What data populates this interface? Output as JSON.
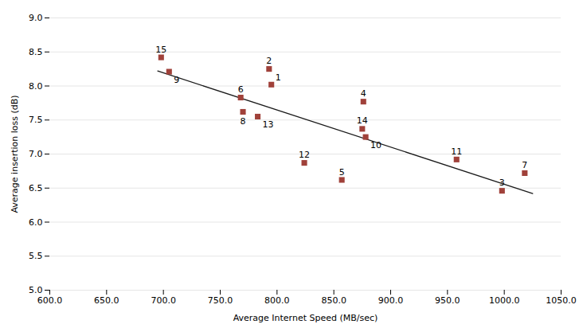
{
  "chart_data": {
    "type": "scatter",
    "xlabel": "Average Internet Speed (MB/sec)",
    "ylabel": "Average insertion loss (dB)",
    "point_labels": [
      "1",
      "2",
      "3",
      "4",
      "5",
      "6",
      "7",
      "8",
      "9",
      "10",
      "11",
      "12",
      "13",
      "14",
      "15"
    ],
    "x": [
      795,
      793,
      998,
      876,
      857,
      768,
      1018,
      770,
      705,
      878,
      958,
      824,
      783,
      875,
      698
    ],
    "values": [
      8.02,
      8.25,
      6.46,
      7.77,
      6.62,
      7.83,
      6.72,
      7.62,
      8.21,
      7.25,
      6.92,
      6.87,
      7.55,
      7.37,
      8.42
    ],
    "color": "#A0413A",
    "marker": "square",
    "trendline": {
      "x": [
        695,
        1025
      ],
      "values": [
        8.22,
        6.42
      ],
      "color": "#1a1a1a"
    },
    "xlim": [
      600.0,
      1050.0
    ],
    "ylim": [
      5.0,
      9.0
    ],
    "xticks": [
      {
        "value": 600,
        "label": "600.0"
      },
      {
        "value": 650,
        "label": "650.0"
      },
      {
        "value": 700,
        "label": "700.0"
      },
      {
        "value": 750,
        "label": "750.0"
      },
      {
        "value": 800,
        "label": "800.0"
      },
      {
        "value": 850,
        "label": "850.0"
      },
      {
        "value": 900,
        "label": "900.0"
      },
      {
        "value": 950,
        "label": "950.0"
      },
      {
        "value": 1000,
        "label": "1000.0"
      },
      {
        "value": 1050,
        "label": "1050.0"
      }
    ],
    "yticks": [
      {
        "value": 5,
        "label": "5.0"
      },
      {
        "value": 5.5,
        "label": "5.5"
      },
      {
        "value": 6,
        "label": "6.0"
      },
      {
        "value": 6.5,
        "label": "6.5"
      },
      {
        "value": 7,
        "label": "7.0"
      },
      {
        "value": 7.5,
        "label": "7.5"
      },
      {
        "value": 8,
        "label": "8.0"
      },
      {
        "value": 8.5,
        "label": "8.5"
      },
      {
        "value": 9,
        "label": "9.0"
      }
    ],
    "grid": "y"
  }
}
